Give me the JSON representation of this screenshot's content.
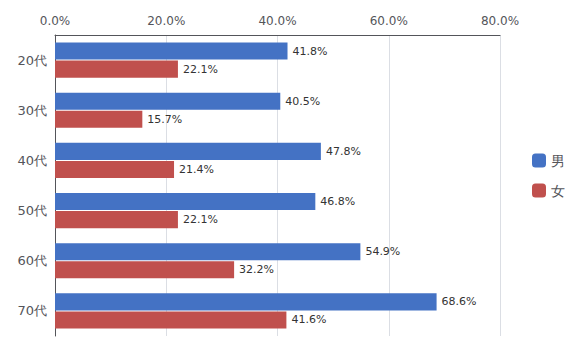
{
  "chart_data": {
    "type": "bar",
    "orientation": "horizontal",
    "categories": [
      "20代",
      "30代",
      "40代",
      "50代",
      "60代",
      "70代"
    ],
    "series": [
      {
        "name": "男",
        "color": "#4472C4",
        "values": [
          41.8,
          40.5,
          47.8,
          46.8,
          54.9,
          68.6
        ],
        "value_labels": [
          "41.8%",
          "40.5%",
          "47.8%",
          "46.8%",
          "54.9%",
          "68.6%"
        ]
      },
      {
        "name": "女",
        "color": "#C0504D",
        "values": [
          22.1,
          15.7,
          21.4,
          22.1,
          32.2,
          41.6
        ],
        "value_labels": [
          "22.1%",
          "15.7%",
          "21.4%",
          "22.1%",
          "32.2%",
          "41.6%"
        ]
      }
    ],
    "xlim": [
      0,
      80
    ],
    "xticks": [
      {
        "value": 0,
        "label": "0.0%"
      },
      {
        "value": 20,
        "label": "20.0%"
      },
      {
        "value": 40,
        "label": "40.0%"
      },
      {
        "value": 60,
        "label": "60.0%"
      },
      {
        "value": 80,
        "label": "80.0%"
      }
    ],
    "grid": true,
    "legend": "right",
    "data_labels": true
  }
}
